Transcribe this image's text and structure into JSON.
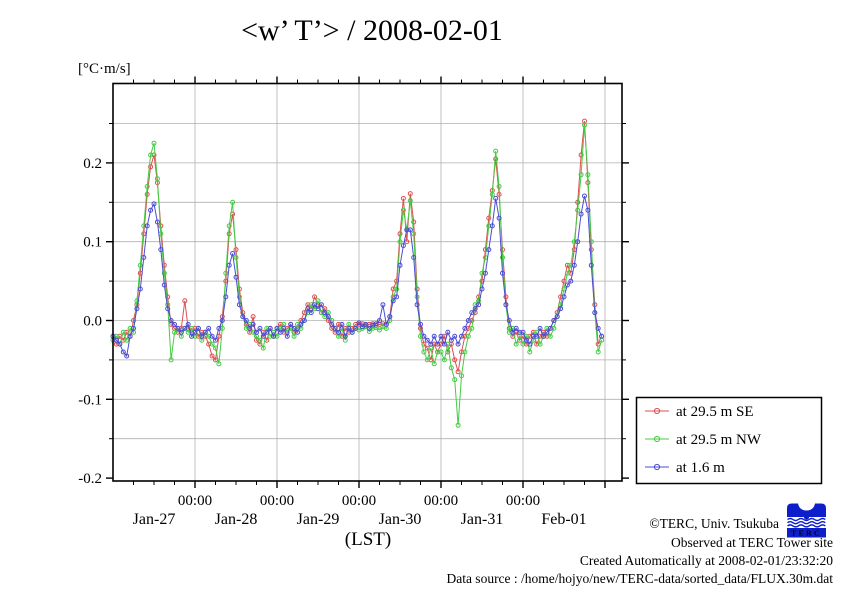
{
  "title": "<w’ T’> / 2008-02-01",
  "unit_label": "[°C·m/s]",
  "xlabel": "(LST)",
  "colors": {
    "frame": "#000000",
    "grid": "#b0b0b0",
    "series_red": "#dd5050",
    "series_green": "#44cc44",
    "series_blue": "#4c4cd6",
    "logo_blue": "#0d1ecb"
  },
  "legend": {
    "entries": [
      {
        "label": "at 29.5 m SE",
        "color": "#dd5050"
      },
      {
        "label": "at 29.5 m NW",
        "color": "#44cc44"
      },
      {
        "label": "at 1.6 m",
        "color": "#4c4cd6"
      }
    ]
  },
  "footer": {
    "lines": [
      "©TERC, Univ. Tsukuba",
      "Observed at TERC Tower site",
      "Created Automatically at 2008-02-01/23:32:20",
      "Data source : /home/hojyo/new/TERC-data/sorted_data/FLUX.30m.dat"
    ]
  },
  "logo": {
    "text": "TERC"
  },
  "chart_data": {
    "type": "line",
    "title": "<w’ T’> / 2008-02-01",
    "ylabel": "[°C·m/s]",
    "xlabel": "(LST)",
    "ylim": [
      -0.204,
      0.301
    ],
    "y_grid_step": 0.05,
    "x_range_days": [
      0,
      6.207
    ],
    "x_start": "Jan-27 00:00",
    "x_step_hours": 1,
    "y_major_ticks": [
      {
        "v": -0.2,
        "label": "-0.2"
      },
      {
        "v": -0.1,
        "label": "-0.1"
      },
      {
        "v": 0.0,
        "label": "0.0"
      },
      {
        "v": 0.1,
        "label": "0.1"
      },
      {
        "v": 0.2,
        "label": "0.2"
      }
    ],
    "x_major_tick_days": [
      1,
      2,
      3,
      4,
      5,
      6
    ],
    "x_minor_step_days": 0.25,
    "x_labeled_ticks": [
      {
        "day": 1,
        "label": "00:00"
      },
      {
        "day": 2,
        "label": "00:00"
      },
      {
        "day": 3,
        "label": "00:00"
      },
      {
        "day": 4,
        "label": "00:00"
      },
      {
        "day": 5,
        "label": "00:00"
      }
    ],
    "date_labels": [
      {
        "day": 0.5,
        "label": "Jan-27"
      },
      {
        "day": 1.5,
        "label": "Jan-28"
      },
      {
        "day": 2.5,
        "label": "Jan-29"
      },
      {
        "day": 3.5,
        "label": "Jan-30"
      },
      {
        "day": 4.5,
        "label": "Jan-31"
      },
      {
        "day": 5.5,
        "label": "Feb-01"
      }
    ],
    "legend_position": "outside-right-bottom",
    "grid": true,
    "series": [
      {
        "name": "at 29.5 m SE",
        "color": "#dd5050",
        "values": [
          -0.02,
          -0.03,
          -0.02,
          -0.025,
          -0.015,
          -0.02,
          0,
          0.02,
          0.06,
          0.11,
          0.16,
          0.195,
          0.21,
          0.175,
          0.12,
          0.07,
          0.03,
          -0.005,
          -0.01,
          -0.015,
          -0.01,
          0.025,
          -0.01,
          -0.015,
          -0.01,
          -0.02,
          -0.015,
          -0.02,
          -0.03,
          -0.045,
          -0.05,
          -0.02,
          0.005,
          0.05,
          0.11,
          0.135,
          0.09,
          0.04,
          0.01,
          -0.005,
          -0.015,
          0.005,
          -0.025,
          -0.03,
          -0.015,
          -0.025,
          -0.01,
          -0.02,
          -0.01,
          -0.005,
          -0.015,
          -0.01,
          -0.005,
          -0.015,
          -0.01,
          0,
          0.01,
          0.02,
          0.015,
          0.03,
          0.02,
          0.01,
          0.015,
          0,
          -0.01,
          -0.015,
          -0.005,
          -0.02,
          -0.01,
          -0.015,
          -0.01,
          -0.005,
          -0.005,
          -0.004,
          -0.006,
          -0.005,
          -0.004,
          -0.006,
          -0.005,
          -0.004,
          -0.005,
          0.005,
          0.04,
          0.05,
          0.11,
          0.155,
          0.1,
          0.161,
          0.125,
          0.04,
          -0.01,
          -0.03,
          -0.035,
          -0.05,
          -0.03,
          -0.04,
          -0.03,
          -0.02,
          -0.04,
          -0.03,
          -0.05,
          -0.065,
          -0.04,
          -0.02,
          -0.01,
          0,
          0.01,
          0.03,
          0.05,
          0.09,
          0.13,
          0.165,
          0.205,
          0.16,
          0.09,
          0.03,
          -0.01,
          -0.02,
          -0.015,
          -0.025,
          -0.02,
          -0.03,
          -0.02,
          -0.015,
          -0.03,
          -0.02,
          -0.015,
          -0.02,
          -0.01,
          0,
          0.01,
          0.03,
          0.05,
          0.07,
          0.06,
          0.09,
          0.15,
          0.21,
          0.253,
          0.175,
          0.09,
          0.02,
          -0.03,
          -0.02
        ]
      },
      {
        "name": "at 29.5 m NW",
        "color": "#44cc44",
        "values": [
          -0.025,
          -0.02,
          -0.03,
          -0.015,
          -0.025,
          -0.01,
          -0.015,
          0.025,
          0.07,
          0.12,
          0.17,
          0.21,
          0.225,
          0.18,
          0.11,
          0.06,
          0.02,
          -0.05,
          -0.015,
          -0.01,
          -0.02,
          -0.01,
          -0.015,
          -0.01,
          -0.02,
          -0.01,
          -0.025,
          -0.015,
          -0.02,
          -0.03,
          -0.035,
          -0.055,
          -0.01,
          0.06,
          0.12,
          0.15,
          0.08,
          0.03,
          0.005,
          -0.01,
          -0.005,
          -0.015,
          -0.02,
          -0.025,
          -0.035,
          -0.01,
          -0.02,
          -0.015,
          -0.02,
          -0.01,
          -0.005,
          -0.015,
          -0.01,
          -0.02,
          -0.005,
          -0.01,
          0,
          0.01,
          0.02,
          0.015,
          0.025,
          0.01,
          0.005,
          0.01,
          0,
          -0.01,
          -0.02,
          -0.01,
          -0.025,
          -0.005,
          -0.015,
          -0.01,
          -0.012,
          -0.01,
          -0.008,
          -0.014,
          -0.01,
          -0.009,
          -0.012,
          -0.008,
          -0.01,
          0,
          0.03,
          0.04,
          0.1,
          0.14,
          0.115,
          0.152,
          0.11,
          0.03,
          -0.02,
          -0.04,
          -0.05,
          -0.035,
          -0.055,
          -0.04,
          -0.04,
          -0.05,
          -0.03,
          -0.06,
          -0.075,
          -0.133,
          -0.07,
          -0.04,
          -0.02,
          -0.01,
          0.02,
          0.025,
          0.06,
          0.08,
          0.12,
          0.16,
          0.215,
          0.17,
          0.08,
          0.02,
          -0.015,
          -0.01,
          -0.03,
          -0.02,
          -0.03,
          -0.02,
          -0.04,
          -0.025,
          -0.015,
          -0.03,
          -0.02,
          -0.01,
          -0.02,
          -0.01,
          0.005,
          0.02,
          0.04,
          0.06,
          0.07,
          0.1,
          0.14,
          0.185,
          0.248,
          0.185,
          0.1,
          0.01,
          -0.04,
          -0.025
        ]
      },
      {
        "name": "at 1.6 m",
        "color": "#4c4cd6",
        "values": [
          -0.02,
          -0.025,
          -0.03,
          -0.04,
          -0.045,
          -0.02,
          -0.01,
          0.015,
          0.04,
          0.08,
          0.12,
          0.14,
          0.148,
          0.125,
          0.09,
          0.045,
          0.015,
          0,
          -0.005,
          -0.01,
          -0.015,
          -0.01,
          -0.005,
          -0.02,
          -0.015,
          -0.01,
          -0.02,
          -0.015,
          -0.01,
          -0.02,
          -0.025,
          -0.01,
          0,
          0.03,
          0.07,
          0.085,
          0.055,
          0.02,
          0.005,
          0,
          -0.01,
          -0.005,
          -0.015,
          -0.01,
          -0.02,
          -0.015,
          -0.01,
          -0.02,
          -0.01,
          -0.015,
          -0.01,
          -0.02,
          -0.005,
          -0.01,
          -0.015,
          -0.005,
          0,
          0.015,
          0.01,
          0.02,
          0.015,
          0.02,
          0.01,
          0.005,
          -0.005,
          -0.01,
          -0.015,
          -0.005,
          -0.02,
          -0.01,
          -0.015,
          -0.01,
          -0.003,
          -0.008,
          -0.005,
          -0.01,
          -0.006,
          -0.004,
          0,
          0.02,
          -0.005,
          0.005,
          0.025,
          0.03,
          0.07,
          0.095,
          0.115,
          0.115,
          0.08,
          0.02,
          -0.005,
          -0.02,
          -0.025,
          -0.03,
          -0.02,
          -0.03,
          -0.02,
          -0.03,
          -0.015,
          -0.025,
          -0.02,
          -0.03,
          -0.02,
          -0.01,
          0,
          0.01,
          0.015,
          0.02,
          0.04,
          0.06,
          0.09,
          0.12,
          0.155,
          0.13,
          0.06,
          0.02,
          0,
          -0.015,
          -0.01,
          -0.015,
          -0.015,
          -0.025,
          -0.03,
          -0.02,
          -0.02,
          -0.01,
          -0.02,
          -0.015,
          -0.01,
          0,
          0.005,
          0.015,
          0.03,
          0.045,
          0.05,
          0.07,
          0.1,
          0.135,
          0.158,
          0.14,
          0.07,
          0.01,
          -0.01,
          -0.02
        ]
      }
    ]
  }
}
